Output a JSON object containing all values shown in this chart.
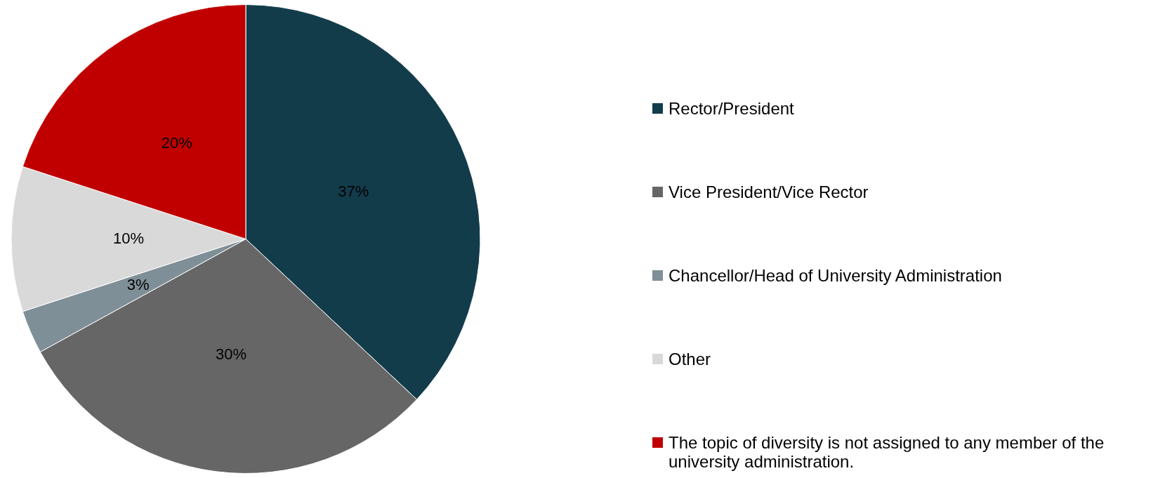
{
  "chart_data": {
    "type": "pie",
    "categories": [
      "Rector/President",
      "Vice President/Vice Rector",
      "Chancellor/Head of University Administration",
      "Other",
      "The topic of diversity is not assigned to any member of the university administration."
    ],
    "values": [
      37,
      30,
      3,
      10,
      20
    ],
    "colors": [
      "#133c4b",
      "#666666",
      "#7f8f97",
      "#d9d9d9",
      "#c00000"
    ],
    "value_labels": [
      "37%",
      "30%",
      "3%",
      "10%",
      "20%"
    ],
    "legend": "right"
  }
}
